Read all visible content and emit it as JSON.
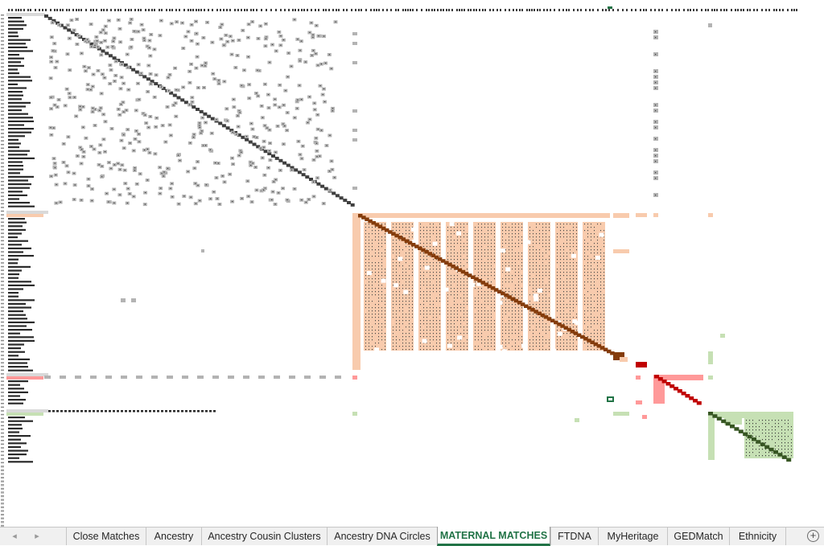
{
  "sheet_tabs": [
    {
      "label": "Close Matches",
      "active": false
    },
    {
      "label": "Ancestry",
      "active": false
    },
    {
      "label": "Ancestry Cousin Clusters",
      "active": false
    },
    {
      "label": "Ancestry DNA Circles",
      "active": false
    },
    {
      "label": "MATERNAL MATCHES",
      "active": true
    },
    {
      "label": "FTDNA",
      "active": false
    },
    {
      "label": "MyHeritage",
      "active": false
    },
    {
      "label": "GEDMatch",
      "active": false
    },
    {
      "label": "Ethnicity",
      "active": false
    }
  ],
  "nav": {
    "prev_icon": "◂",
    "next_icon": "▸",
    "add_icon": "+"
  },
  "clusters": [
    {
      "name": "cluster-1-gray",
      "fill": "#b3b3b3",
      "diagonal": "#3f3f3f"
    },
    {
      "name": "cluster-2-peach",
      "fill": "#f8cbad",
      "diagonal": "#843c0c"
    },
    {
      "name": "cluster-3-pink",
      "fill": "#ff9999",
      "diagonal": "#c00000"
    },
    {
      "name": "cluster-4-green",
      "fill": "#c6e0b4",
      "diagonal": "#375623"
    }
  ]
}
